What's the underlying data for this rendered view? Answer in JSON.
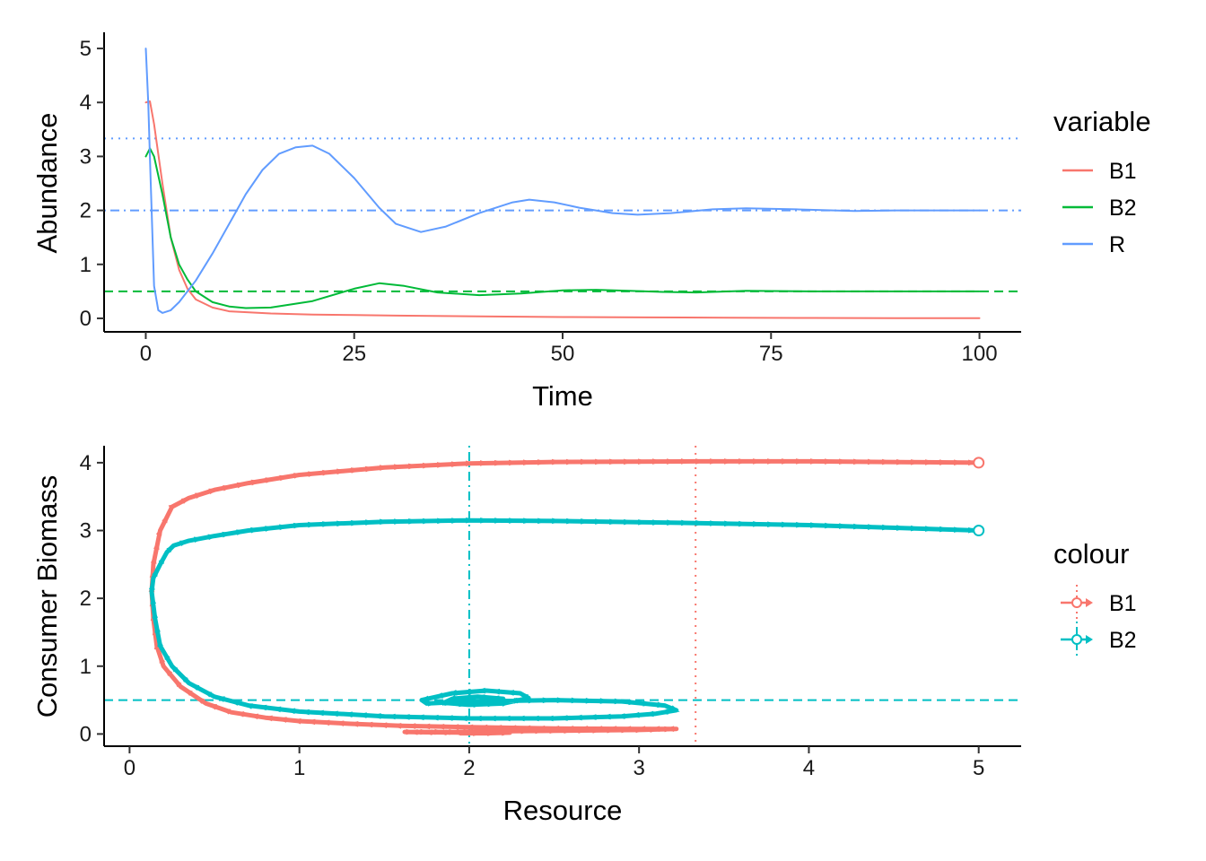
{
  "chart_data": [
    {
      "type": "line",
      "xlabel": "Time",
      "ylabel": "Abundance",
      "xlim": [
        -5,
        105
      ],
      "ylim": [
        -0.25,
        5.3
      ],
      "x_ticks": [
        0,
        25,
        50,
        75,
        100
      ],
      "y_ticks": [
        0,
        1,
        2,
        3,
        4,
        5
      ],
      "legend_title": "variable",
      "legend_position": "right",
      "grid": false,
      "series": [
        {
          "name": "B1",
          "color": "#F8766D",
          "points": [
            [
              0,
              4.0
            ],
            [
              0.5,
              4.02
            ],
            [
              1,
              3.6
            ],
            [
              2,
              2.5
            ],
            [
              3,
              1.5
            ],
            [
              4,
              0.9
            ],
            [
              5,
              0.55
            ],
            [
              6,
              0.35
            ],
            [
              8,
              0.2
            ],
            [
              10,
              0.13
            ],
            [
              15,
              0.09
            ],
            [
              20,
              0.07
            ],
            [
              25,
              0.06
            ],
            [
              30,
              0.05
            ],
            [
              40,
              0.035
            ],
            [
              50,
              0.025
            ],
            [
              60,
              0.018
            ],
            [
              70,
              0.012
            ],
            [
              80,
              0.008
            ],
            [
              90,
              0.005
            ],
            [
              100,
              0.003
            ]
          ]
        },
        {
          "name": "B2",
          "color": "#00BA38",
          "points": [
            [
              0,
              3.0
            ],
            [
              0.5,
              3.15
            ],
            [
              1,
              3.0
            ],
            [
              2,
              2.3
            ],
            [
              3,
              1.5
            ],
            [
              4,
              1.0
            ],
            [
              5,
              0.72
            ],
            [
              6,
              0.5
            ],
            [
              8,
              0.3
            ],
            [
              10,
              0.22
            ],
            [
              12,
              0.19
            ],
            [
              15,
              0.2
            ],
            [
              20,
              0.32
            ],
            [
              25,
              0.55
            ],
            [
              28,
              0.65
            ],
            [
              31,
              0.6
            ],
            [
              35,
              0.48
            ],
            [
              40,
              0.43
            ],
            [
              45,
              0.46
            ],
            [
              50,
              0.52
            ],
            [
              54,
              0.53
            ],
            [
              58,
              0.51
            ],
            [
              62,
              0.49
            ],
            [
              66,
              0.48
            ],
            [
              72,
              0.51
            ],
            [
              80,
              0.5
            ],
            [
              90,
              0.5
            ],
            [
              100,
              0.5
            ]
          ]
        },
        {
          "name": "R",
          "color": "#619CFF",
          "points": [
            [
              0,
              5.0
            ],
            [
              0.3,
              4.0
            ],
            [
              0.6,
              2.5
            ],
            [
              1,
              0.6
            ],
            [
              1.5,
              0.15
            ],
            [
              2,
              0.1
            ],
            [
              3,
              0.15
            ],
            [
              4,
              0.3
            ],
            [
              6,
              0.7
            ],
            [
              8,
              1.2
            ],
            [
              10,
              1.75
            ],
            [
              12,
              2.3
            ],
            [
              14,
              2.75
            ],
            [
              16,
              3.05
            ],
            [
              18,
              3.17
            ],
            [
              20,
              3.2
            ],
            [
              22,
              3.05
            ],
            [
              25,
              2.6
            ],
            [
              28,
              2.05
            ],
            [
              30,
              1.75
            ],
            [
              33,
              1.6
            ],
            [
              36,
              1.7
            ],
            [
              40,
              1.95
            ],
            [
              44,
              2.15
            ],
            [
              46,
              2.2
            ],
            [
              49,
              2.15
            ],
            [
              52,
              2.05
            ],
            [
              56,
              1.95
            ],
            [
              59,
              1.92
            ],
            [
              63,
              1.95
            ],
            [
              68,
              2.02
            ],
            [
              72,
              2.04
            ],
            [
              78,
              2.02
            ],
            [
              85,
              1.99
            ],
            [
              90,
              2.0
            ],
            [
              100,
              2.0
            ]
          ]
        }
      ],
      "hlines": [
        {
          "y": 3.333,
          "color": "#619CFF",
          "linetype": "dotted"
        },
        {
          "y": 2.0,
          "color": "#619CFF",
          "linetype": "dotdash"
        },
        {
          "y": 0.5,
          "color": "#00BA38",
          "linetype": "dashed"
        }
      ]
    },
    {
      "type": "line",
      "xlabel": "Resource",
      "ylabel": "Consumer Biomass",
      "xlim": [
        -0.15,
        5.25
      ],
      "ylim": [
        -0.18,
        4.25
      ],
      "x_ticks": [
        0,
        1,
        2,
        3,
        4,
        5
      ],
      "y_ticks": [
        0,
        1,
        2,
        3,
        4
      ],
      "legend_title": "colour",
      "legend_position": "right",
      "grid": false,
      "series": [
        {
          "name": "B1",
          "color": "#F8766D",
          "start_marker": "open-circle",
          "direction_arrows": true,
          "points": [
            [
              5.0,
              4.0
            ],
            [
              4.0,
              4.02
            ],
            [
              3.33,
              4.02
            ],
            [
              2.5,
              4.01
            ],
            [
              2.0,
              3.99
            ],
            [
              1.5,
              3.93
            ],
            [
              1.0,
              3.82
            ],
            [
              0.7,
              3.7
            ],
            [
              0.5,
              3.6
            ],
            [
              0.35,
              3.48
            ],
            [
              0.25,
              3.35
            ],
            [
              0.18,
              3.0
            ],
            [
              0.14,
              2.5
            ],
            [
              0.13,
              2.1
            ],
            [
              0.14,
              1.7
            ],
            [
              0.16,
              1.3
            ],
            [
              0.2,
              1.0
            ],
            [
              0.3,
              0.7
            ],
            [
              0.45,
              0.45
            ],
            [
              0.6,
              0.32
            ],
            [
              0.8,
              0.24
            ],
            [
              1.0,
              0.19
            ],
            [
              1.3,
              0.15
            ],
            [
              1.6,
              0.12
            ],
            [
              2.0,
              0.1
            ],
            [
              2.5,
              0.08
            ],
            [
              3.0,
              0.075
            ],
            [
              3.22,
              0.075
            ],
            [
              3.0,
              0.06
            ],
            [
              2.6,
              0.05
            ],
            [
              2.2,
              0.04
            ],
            [
              1.9,
              0.03
            ],
            [
              1.62,
              0.03
            ],
            [
              1.75,
              0.025
            ],
            [
              2.0,
              0.02
            ],
            [
              2.24,
              0.02
            ],
            [
              2.1,
              0.01
            ],
            [
              1.95,
              0.01
            ]
          ]
        },
        {
          "name": "B2",
          "color": "#00BFC4",
          "start_marker": "open-circle",
          "direction_arrows": true,
          "points": [
            [
              5.0,
              3.0
            ],
            [
              4.0,
              3.08
            ],
            [
              3.33,
              3.11
            ],
            [
              2.5,
              3.14
            ],
            [
              2.0,
              3.15
            ],
            [
              1.5,
              3.13
            ],
            [
              1.0,
              3.08
            ],
            [
              0.7,
              3.0
            ],
            [
              0.5,
              2.92
            ],
            [
              0.35,
              2.85
            ],
            [
              0.26,
              2.78
            ],
            [
              0.22,
              2.68
            ],
            [
              0.18,
              2.5
            ],
            [
              0.14,
              2.3
            ],
            [
              0.13,
              2.1
            ],
            [
              0.15,
              1.7
            ],
            [
              0.18,
              1.3
            ],
            [
              0.25,
              1.0
            ],
            [
              0.35,
              0.75
            ],
            [
              0.5,
              0.55
            ],
            [
              0.7,
              0.42
            ],
            [
              1.0,
              0.33
            ],
            [
              1.5,
              0.26
            ],
            [
              2.0,
              0.23
            ],
            [
              2.5,
              0.23
            ],
            [
              2.9,
              0.26
            ],
            [
              3.1,
              0.3
            ],
            [
              3.22,
              0.35
            ],
            [
              3.15,
              0.42
            ],
            [
              2.9,
              0.48
            ],
            [
              2.5,
              0.5
            ],
            [
              2.0,
              0.48
            ],
            [
              1.75,
              0.45
            ],
            [
              1.72,
              0.5
            ],
            [
              1.9,
              0.6
            ],
            [
              2.1,
              0.64
            ],
            [
              2.3,
              0.6
            ],
            [
              2.35,
              0.53
            ],
            [
              2.2,
              0.45
            ],
            [
              2.0,
              0.43
            ],
            [
              1.85,
              0.46
            ],
            [
              1.9,
              0.52
            ],
            [
              2.05,
              0.55
            ],
            [
              2.2,
              0.52
            ],
            [
              2.18,
              0.48
            ],
            [
              2.05,
              0.47
            ],
            [
              1.98,
              0.5
            ],
            [
              2.02,
              0.51
            ],
            [
              2.0,
              0.5
            ]
          ]
        }
      ],
      "hlines": [
        {
          "y": 0.5,
          "color": "#00BFC4",
          "linetype": "dashed"
        }
      ],
      "vlines": [
        {
          "x": 2.0,
          "color": "#00BFC4",
          "linetype": "dotdash"
        },
        {
          "x": 3.333,
          "color": "#F8766D",
          "linetype": "dotted"
        }
      ]
    }
  ]
}
